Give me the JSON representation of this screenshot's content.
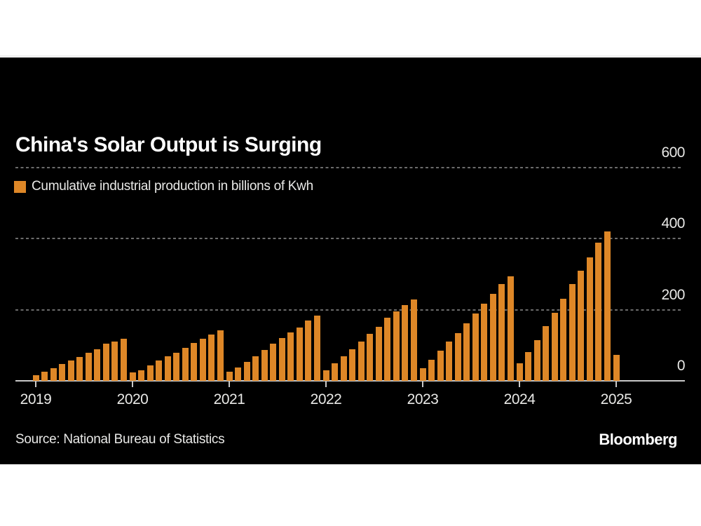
{
  "page": {
    "title": "China's Solar Output is Surging",
    "source": "Source: National Bureau of Statistics",
    "brand": "Bloomberg"
  },
  "chart_data": {
    "type": "bar",
    "title": "China's Solar Output is Surging",
    "legend": "Cumulative industrial production in billions of Kwh",
    "xlabel": "",
    "ylabel": "billions of Kwh",
    "ylim": [
      0,
      600
    ],
    "y_ticks": [
      0,
      200,
      400,
      600
    ],
    "x_tick_labels": [
      "2019",
      "2020",
      "2021",
      "2022",
      "2023",
      "2024",
      "2025"
    ],
    "grid": "horizontal-dashed",
    "legend_position": "top-left",
    "y_axis_side": "right",
    "bar_color": "#de8727",
    "background_color": "#000000",
    "series": [
      {
        "name": "Cumulative industrial production in billions of Kwh",
        "groups": [
          {
            "year": "2019",
            "values": [
              15,
              25,
              35,
              48,
              58,
              67,
              78,
              89,
              104,
              111,
              119
            ]
          },
          {
            "year": "2020",
            "values": [
              23,
              30,
              44,
              57,
              69,
              79,
              93,
              107,
              119,
              131,
              142
            ]
          },
          {
            "year": "2021",
            "values": [
              25,
              37,
              53,
              70,
              87,
              104,
              121,
              136,
              151,
              170,
              184
            ]
          },
          {
            "year": "2022",
            "values": [
              29,
              49,
              70,
              89,
              110,
              132,
              152,
              177,
              196,
              214,
              229
            ]
          },
          {
            "year": "2023",
            "values": [
              36,
              60,
              85,
              110,
              134,
              162,
              190,
              218,
              244,
              273,
              294
            ]
          },
          {
            "year": "2024",
            "values": [
              49,
              80,
              114,
              153,
              192,
              230,
              272,
              309,
              348,
              388,
              421
            ]
          },
          {
            "year": "2025",
            "values": [
              74
            ]
          }
        ]
      }
    ]
  }
}
